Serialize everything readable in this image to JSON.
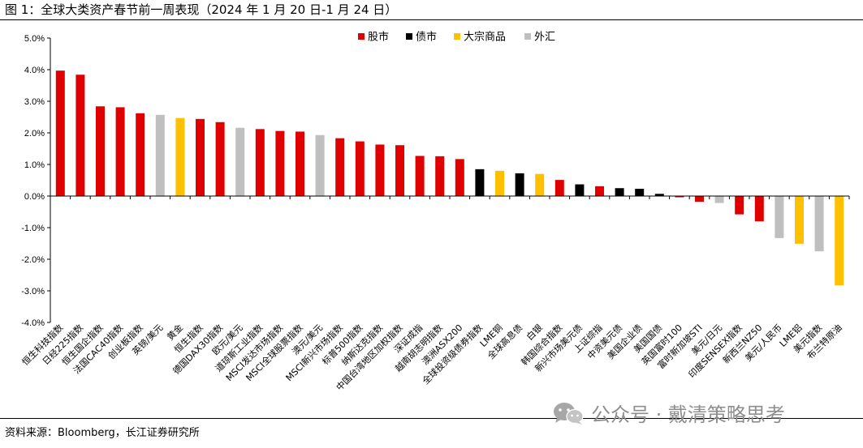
{
  "header": {
    "title": "图 1：全球大类资产春节前一周表现（2024 年 1 月 20 日-1 月 24 日）"
  },
  "footer": {
    "source": "资料来源：Bloomberg，长江证券研究所"
  },
  "watermark": {
    "text": "公众号 · 戴清策略思考",
    "icon": "wechat-logo-icon"
  },
  "colors": {
    "股市": "#e00000",
    "债市": "#000000",
    "大宗商品": "#ffc000",
    "外汇": "#bfbfbf"
  },
  "chart_data": {
    "type": "bar",
    "title": "",
    "xlabel": "",
    "ylabel": "",
    "ylim": [
      -4.0,
      5.0
    ],
    "yticks": [
      "5.0%",
      "4.0%",
      "3.0%",
      "2.0%",
      "1.0%",
      "0.0%",
      "-1.0%",
      "-2.0%",
      "-3.0%",
      "-4.0%"
    ],
    "yticks_values": [
      5,
      4,
      3,
      2,
      1,
      0,
      -1,
      -2,
      -3,
      -4
    ],
    "grid": false,
    "legend": {
      "placement": "top-center",
      "items": [
        "股市",
        "债市",
        "大宗商品",
        "外汇"
      ]
    },
    "unit": "%",
    "categories": [
      "恒生科技指数",
      "日经225指数",
      "恒生国企指数",
      "法国CAC40指数",
      "创业板指数",
      "英镑/美元",
      "黄金",
      "恒生指数",
      "德国DAX30指数",
      "欧元/美元",
      "道琼斯工业指数",
      "MSCI发达市场指数",
      "MSCI全球股票指数",
      "澳元/美元",
      "MSCI新兴市场指数",
      "标普500指数",
      "纳斯达克指数",
      "中国台湾地区加权指数",
      "深证成指",
      "越南胡志明指数",
      "澳洲ASX200",
      "全球投资级债券指数",
      "LME铜",
      "全球高息债",
      "白银",
      "韩国综合指数",
      "新兴市场美元债",
      "上证综指",
      "中资美元债",
      "美国企业债",
      "美国国债",
      "英国富时100",
      "富时新加坡STI",
      "美元/日元",
      "印度SENSEX指数",
      "新西兰NZ50",
      "美元/人民币",
      "LME铝",
      "美元指数",
      "布兰特原油"
    ],
    "values": [
      3.97,
      3.84,
      2.84,
      2.81,
      2.62,
      2.57,
      2.47,
      2.44,
      2.34,
      2.16,
      2.12,
      2.06,
      2.04,
      1.93,
      1.83,
      1.73,
      1.63,
      1.61,
      1.27,
      1.26,
      1.17,
      0.85,
      0.8,
      0.72,
      0.7,
      0.51,
      0.37,
      0.31,
      0.25,
      0.23,
      0.07,
      -0.04,
      -0.18,
      -0.22,
      -0.58,
      -0.8,
      -1.33,
      -1.51,
      -1.75,
      -2.83
    ],
    "groups": [
      "股市",
      "股市",
      "股市",
      "股市",
      "股市",
      "外汇",
      "大宗商品",
      "股市",
      "股市",
      "外汇",
      "股市",
      "股市",
      "股市",
      "外汇",
      "股市",
      "股市",
      "股市",
      "股市",
      "股市",
      "股市",
      "股市",
      "债市",
      "大宗商品",
      "债市",
      "大宗商品",
      "股市",
      "债市",
      "股市",
      "债市",
      "债市",
      "债市",
      "股市",
      "股市",
      "外汇",
      "股市",
      "股市",
      "外汇",
      "大宗商品",
      "外汇",
      "大宗商品"
    ]
  }
}
